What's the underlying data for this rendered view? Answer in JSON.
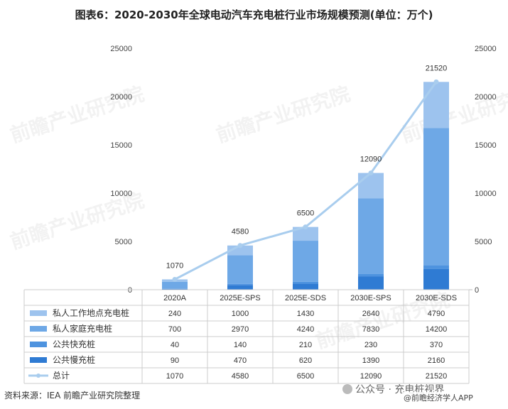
{
  "title": "图表6：2020-2030年全球电动汽车充电桩行业市场规模预测(单位：万个)",
  "source": "资料来源：IEA 前瞻产业研究院整理",
  "watermark": "前瞻产业研究院",
  "wechat_text": "公众号 · 充电桩视界",
  "wechat_sub": "@前瞻经济学人APP",
  "colors": {
    "private_work": "#9dc3ee",
    "private_home": "#6ea8e6",
    "public_fast": "#4e93df",
    "public_slow": "#2f7bd3",
    "total_line": "#a9cdee"
  },
  "chart_data": {
    "type": "bar",
    "stacked": true,
    "categories": [
      "2020A",
      "2025E-SPS",
      "2025E-SDS",
      "2030E-SPS",
      "2030E-SDS"
    ],
    "series": [
      {
        "name": "私人工作地点充电桩",
        "values": [
          240,
          1000,
          1430,
          2640,
          4790
        ]
      },
      {
        "name": "私人家庭充电桩",
        "values": [
          700,
          2970,
          4240,
          7830,
          14200
        ]
      },
      {
        "name": "公共快充桩",
        "values": [
          40,
          140,
          210,
          230,
          370
        ]
      },
      {
        "name": "公共慢充桩",
        "values": [
          90,
          470,
          620,
          1390,
          2160
        ]
      }
    ],
    "line_series": {
      "name": "总计",
      "values": [
        1070,
        4580,
        6500,
        12090,
        21520
      ]
    },
    "ylim": [
      0,
      25000
    ],
    "yticks": [
      "0",
      "5000",
      "10000",
      "15000",
      "20000",
      "25000"
    ],
    "total_labels": [
      "1070",
      "4580",
      "6500",
      "12090",
      "21520"
    ],
    "legend": "table-bottom"
  }
}
